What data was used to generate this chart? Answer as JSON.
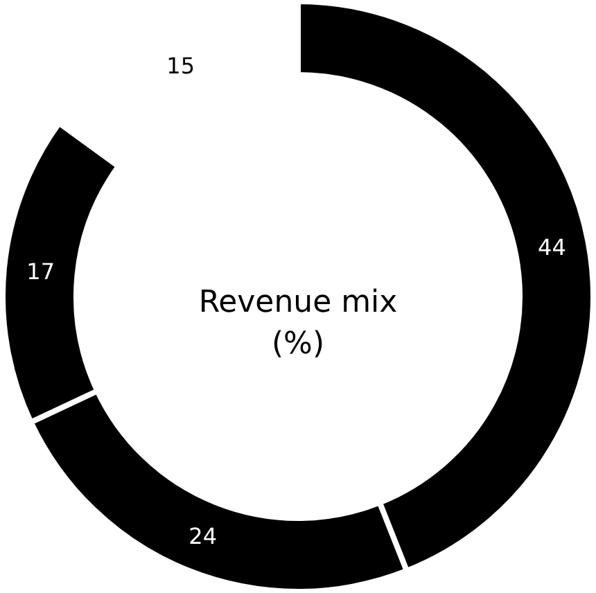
{
  "chart_data": {
    "type": "donut",
    "title": "Revenue mix (%)",
    "categories": [
      null,
      null,
      null,
      null
    ],
    "values": [
      44,
      24,
      17,
      15
    ],
    "colors": [
      "#000000",
      "#000000",
      "#000000",
      "#ffffff"
    ],
    "data_labels": true
  }
}
